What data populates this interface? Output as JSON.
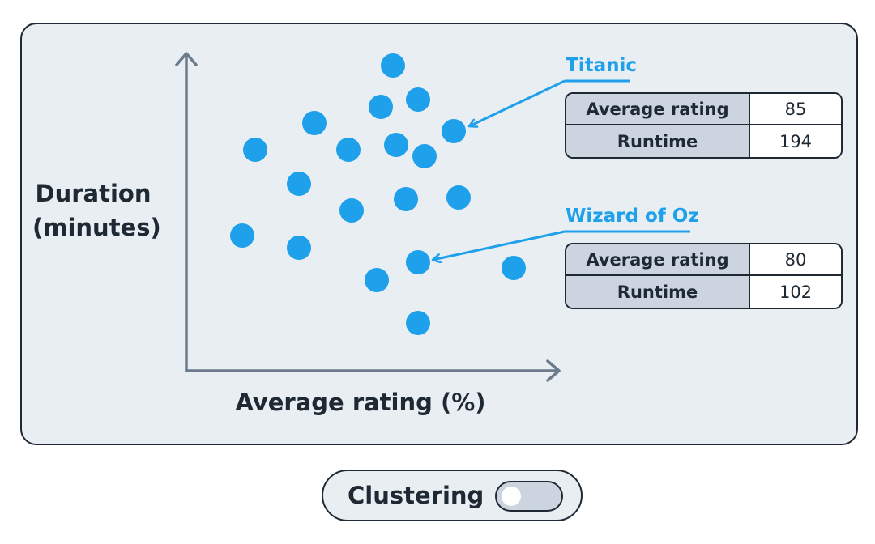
{
  "axes": {
    "y_label_line1": "Duration",
    "y_label_line2": "(minutes)",
    "x_label": "Average rating (%)"
  },
  "points_count_note": "",
  "callouts": [
    {
      "title": "Titanic",
      "rows": [
        {
          "key": "Average rating",
          "value": "85"
        },
        {
          "key": "Runtime",
          "value": "194"
        }
      ]
    },
    {
      "title": "Wizard of Oz",
      "rows": [
        {
          "key": "Average rating",
          "value": "80"
        },
        {
          "key": "Runtime",
          "value": "102"
        }
      ]
    }
  ],
  "toggle": {
    "label": "Clustering",
    "on": false
  },
  "colors": {
    "point": "#1ea0ea",
    "axis": "#6b7b8c",
    "panel": "#e9eef3",
    "border": "#1f2933",
    "header_cell": "#ccd5df"
  }
}
